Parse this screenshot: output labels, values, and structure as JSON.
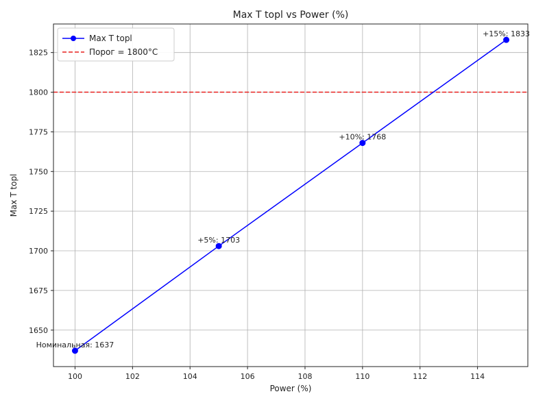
{
  "chart_data": {
    "type": "line",
    "title": "Max T topl vs Power (%)",
    "xlabel": "Power (%)",
    "ylabel": "Max T topl",
    "xlim": [
      99.25,
      115.75
    ],
    "ylim": [
      1627,
      1843
    ],
    "xticks": [
      100,
      102,
      104,
      106,
      108,
      110,
      112,
      114
    ],
    "yticks": [
      1650,
      1675,
      1700,
      1725,
      1750,
      1775,
      1800,
      1825
    ],
    "grid": true,
    "legend_position": "top-left",
    "series": [
      {
        "name": "Max T topl",
        "color": "#0000ff",
        "marker": "circle",
        "x": [
          100,
          105,
          110,
          115
        ],
        "y": [
          1637,
          1703,
          1768,
          1833
        ],
        "point_labels": [
          "Номинальная: 1637",
          "+5%: 1703",
          "+10%: 1768",
          "+15%: 1833"
        ]
      }
    ],
    "reference_lines": [
      {
        "name": "Порог = 1800°C",
        "axis": "y",
        "value": 1800,
        "color": "#e8201e",
        "style": "dashed"
      }
    ]
  }
}
